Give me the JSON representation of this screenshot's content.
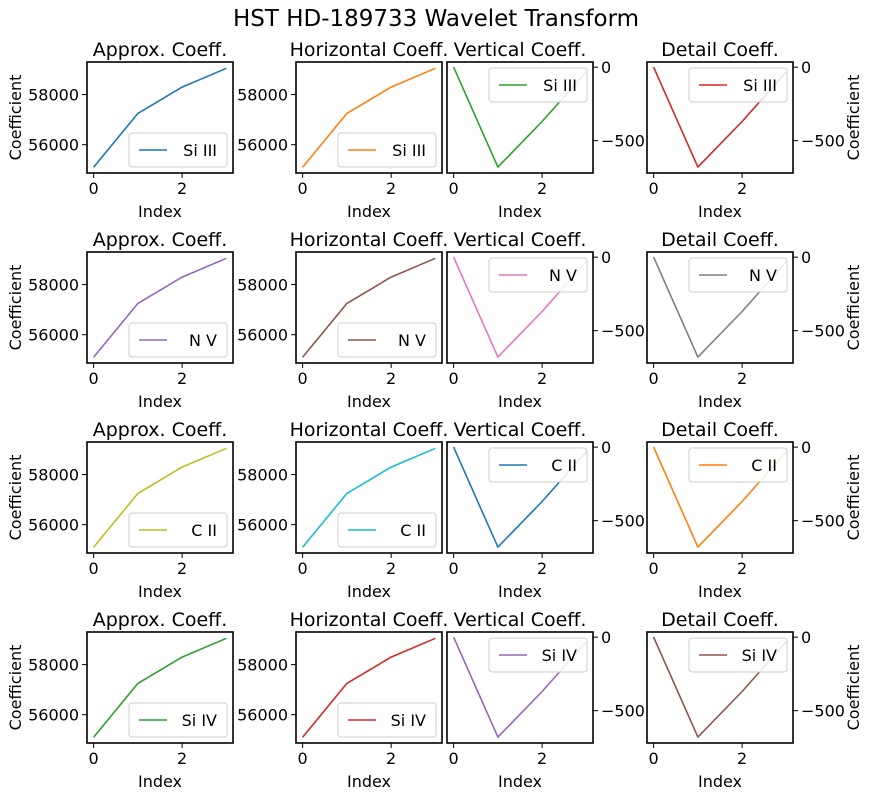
{
  "figure": {
    "suptitle": "HST HD-189733 Wavelet Transform"
  },
  "chart_data": [
    {
      "type": "line",
      "title": "Approx. Coeff.",
      "xlabel": "Index",
      "ylabel": "Coefficient",
      "x": [
        0,
        1,
        2,
        3
      ],
      "xticks": [
        0,
        2
      ],
      "yticks": [
        56000,
        58000
      ],
      "xlim": [
        -0.15,
        3.15
      ],
      "ylim": [
        54870,
        59300
      ],
      "y_axis_side": "left",
      "legend_loc": "lower right",
      "series": [
        {
          "name": "Si III",
          "color": "#1f77b4",
          "values": [
            55100,
            57250,
            58300,
            59050
          ]
        }
      ]
    },
    {
      "type": "line",
      "title": "Horizontal Coeff.",
      "xlabel": "Index",
      "ylabel": "",
      "x": [
        0,
        1,
        2,
        3
      ],
      "xticks": [
        0,
        2
      ],
      "yticks": [
        56000,
        58000
      ],
      "xlim": [
        -0.15,
        3.15
      ],
      "ylim": [
        54870,
        59300
      ],
      "y_axis_side": "left",
      "legend_loc": "lower right",
      "series": [
        {
          "name": "Si III",
          "color": "#ff7f0e",
          "values": [
            55100,
            57250,
            58300,
            59050
          ]
        }
      ]
    },
    {
      "type": "line",
      "title": "Vertical Coeff.",
      "xlabel": "Index",
      "ylabel": "",
      "x": [
        0,
        1,
        2,
        3
      ],
      "xticks": [
        0,
        2
      ],
      "yticks": [
        0,
        -500
      ],
      "xlim": [
        -0.15,
        3.15
      ],
      "ylim": [
        -720,
        35
      ],
      "y_axis_side": "right",
      "legend_loc": "upper right",
      "series": [
        {
          "name": "Si III",
          "color": "#2ca02c",
          "values": [
            0,
            -680,
            -370,
            -30
          ]
        }
      ]
    },
    {
      "type": "line",
      "title": "Detail Coeff.",
      "xlabel": "Index",
      "ylabel": "Coefficient",
      "x": [
        0,
        1,
        2,
        3
      ],
      "xticks": [
        0,
        2
      ],
      "yticks": [
        0,
        -500
      ],
      "xlim": [
        -0.15,
        3.15
      ],
      "ylim": [
        -720,
        35
      ],
      "y_axis_side": "right",
      "legend_loc": "upper right",
      "series": [
        {
          "name": "Si III",
          "color": "#d62728",
          "values": [
            0,
            -680,
            -370,
            -30
          ]
        }
      ]
    },
    {
      "type": "line",
      "title": "Approx. Coeff.",
      "xlabel": "Index",
      "ylabel": "Coefficient",
      "x": [
        0,
        1,
        2,
        3
      ],
      "xticks": [
        0,
        2
      ],
      "yticks": [
        56000,
        58000
      ],
      "xlim": [
        -0.15,
        3.15
      ],
      "ylim": [
        54870,
        59300
      ],
      "y_axis_side": "left",
      "legend_loc": "lower right",
      "series": [
        {
          "name": "N V",
          "color": "#9467bd",
          "values": [
            55100,
            57250,
            58300,
            59050
          ]
        }
      ]
    },
    {
      "type": "line",
      "title": "Horizontal Coeff.",
      "xlabel": "Index",
      "ylabel": "",
      "x": [
        0,
        1,
        2,
        3
      ],
      "xticks": [
        0,
        2
      ],
      "yticks": [
        56000,
        58000
      ],
      "xlim": [
        -0.15,
        3.15
      ],
      "ylim": [
        54870,
        59300
      ],
      "y_axis_side": "left",
      "legend_loc": "lower right",
      "series": [
        {
          "name": "N V",
          "color": "#8c564b",
          "values": [
            55100,
            57250,
            58300,
            59050
          ]
        }
      ]
    },
    {
      "type": "line",
      "title": "Vertical Coeff.",
      "xlabel": "Index",
      "ylabel": "",
      "x": [
        0,
        1,
        2,
        3
      ],
      "xticks": [
        0,
        2
      ],
      "yticks": [
        0,
        -500
      ],
      "xlim": [
        -0.15,
        3.15
      ],
      "ylim": [
        -720,
        35
      ],
      "y_axis_side": "right",
      "legend_loc": "upper right",
      "series": [
        {
          "name": "N V",
          "color": "#e377c2",
          "values": [
            0,
            -680,
            -370,
            -30
          ]
        }
      ]
    },
    {
      "type": "line",
      "title": "Detail Coeff.",
      "xlabel": "Index",
      "ylabel": "Coefficient",
      "x": [
        0,
        1,
        2,
        3
      ],
      "xticks": [
        0,
        2
      ],
      "yticks": [
        0,
        -500
      ],
      "xlim": [
        -0.15,
        3.15
      ],
      "ylim": [
        -720,
        35
      ],
      "y_axis_side": "right",
      "legend_loc": "upper right",
      "series": [
        {
          "name": "N V",
          "color": "#7f7f7f",
          "values": [
            0,
            -680,
            -370,
            -30
          ]
        }
      ]
    },
    {
      "type": "line",
      "title": "Approx. Coeff.",
      "xlabel": "Index",
      "ylabel": "Coefficient",
      "x": [
        0,
        1,
        2,
        3
      ],
      "xticks": [
        0,
        2
      ],
      "yticks": [
        56000,
        58000
      ],
      "xlim": [
        -0.15,
        3.15
      ],
      "ylim": [
        54870,
        59300
      ],
      "y_axis_side": "left",
      "legend_loc": "lower right",
      "series": [
        {
          "name": "C II",
          "color": "#bcbd22",
          "values": [
            55100,
            57250,
            58300,
            59050
          ]
        }
      ]
    },
    {
      "type": "line",
      "title": "Horizontal Coeff.",
      "xlabel": "Index",
      "ylabel": "",
      "x": [
        0,
        1,
        2,
        3
      ],
      "xticks": [
        0,
        2
      ],
      "yticks": [
        56000,
        58000
      ],
      "xlim": [
        -0.15,
        3.15
      ],
      "ylim": [
        54870,
        59300
      ],
      "y_axis_side": "left",
      "legend_loc": "lower right",
      "series": [
        {
          "name": "C II",
          "color": "#17becf",
          "values": [
            55100,
            57250,
            58300,
            59050
          ]
        }
      ]
    },
    {
      "type": "line",
      "title": "Vertical Coeff.",
      "xlabel": "Index",
      "ylabel": "",
      "x": [
        0,
        1,
        2,
        3
      ],
      "xticks": [
        0,
        2
      ],
      "yticks": [
        0,
        -500
      ],
      "xlim": [
        -0.15,
        3.15
      ],
      "ylim": [
        -720,
        35
      ],
      "y_axis_side": "right",
      "legend_loc": "upper right",
      "series": [
        {
          "name": "C II",
          "color": "#1f77b4",
          "values": [
            0,
            -680,
            -370,
            -30
          ]
        }
      ]
    },
    {
      "type": "line",
      "title": "Detail Coeff.",
      "xlabel": "Index",
      "ylabel": "Coefficient",
      "x": [
        0,
        1,
        2,
        3
      ],
      "xticks": [
        0,
        2
      ],
      "yticks": [
        0,
        -500
      ],
      "xlim": [
        -0.15,
        3.15
      ],
      "ylim": [
        -720,
        35
      ],
      "y_axis_side": "right",
      "legend_loc": "upper right",
      "series": [
        {
          "name": "C II",
          "color": "#ff7f0e",
          "values": [
            0,
            -680,
            -370,
            -30
          ]
        }
      ]
    },
    {
      "type": "line",
      "title": "Approx. Coeff.",
      "xlabel": "Index",
      "ylabel": "Coefficient",
      "x": [
        0,
        1,
        2,
        3
      ],
      "xticks": [
        0,
        2
      ],
      "yticks": [
        56000,
        58000
      ],
      "xlim": [
        -0.15,
        3.15
      ],
      "ylim": [
        54870,
        59300
      ],
      "y_axis_side": "left",
      "legend_loc": "lower right",
      "series": [
        {
          "name": "Si IV",
          "color": "#2ca02c",
          "values": [
            55100,
            57250,
            58300,
            59050
          ]
        }
      ]
    },
    {
      "type": "line",
      "title": "Horizontal Coeff.",
      "xlabel": "Index",
      "ylabel": "",
      "x": [
        0,
        1,
        2,
        3
      ],
      "xticks": [
        0,
        2
      ],
      "yticks": [
        56000,
        58000
      ],
      "xlim": [
        -0.15,
        3.15
      ],
      "ylim": [
        54870,
        59300
      ],
      "y_axis_side": "left",
      "legend_loc": "lower right",
      "series": [
        {
          "name": "Si IV",
          "color": "#d62728",
          "values": [
            55100,
            57250,
            58300,
            59050
          ]
        }
      ]
    },
    {
      "type": "line",
      "title": "Vertical Coeff.",
      "xlabel": "Index",
      "ylabel": "",
      "x": [
        0,
        1,
        2,
        3
      ],
      "xticks": [
        0,
        2
      ],
      "yticks": [
        0,
        -500
      ],
      "xlim": [
        -0.15,
        3.15
      ],
      "ylim": [
        -720,
        35
      ],
      "y_axis_side": "right",
      "legend_loc": "upper right",
      "series": [
        {
          "name": "Si IV",
          "color": "#9467bd",
          "values": [
            0,
            -680,
            -370,
            -30
          ]
        }
      ]
    },
    {
      "type": "line",
      "title": "Detail Coeff.",
      "xlabel": "Index",
      "ylabel": "Coefficient",
      "x": [
        0,
        1,
        2,
        3
      ],
      "xticks": [
        0,
        2
      ],
      "yticks": [
        0,
        -500
      ],
      "xlim": [
        -0.15,
        3.15
      ],
      "ylim": [
        -720,
        35
      ],
      "y_axis_side": "right",
      "legend_loc": "upper right",
      "series": [
        {
          "name": "Si IV",
          "color": "#8c564b",
          "values": [
            0,
            -680,
            -370,
            -30
          ]
        }
      ]
    }
  ]
}
